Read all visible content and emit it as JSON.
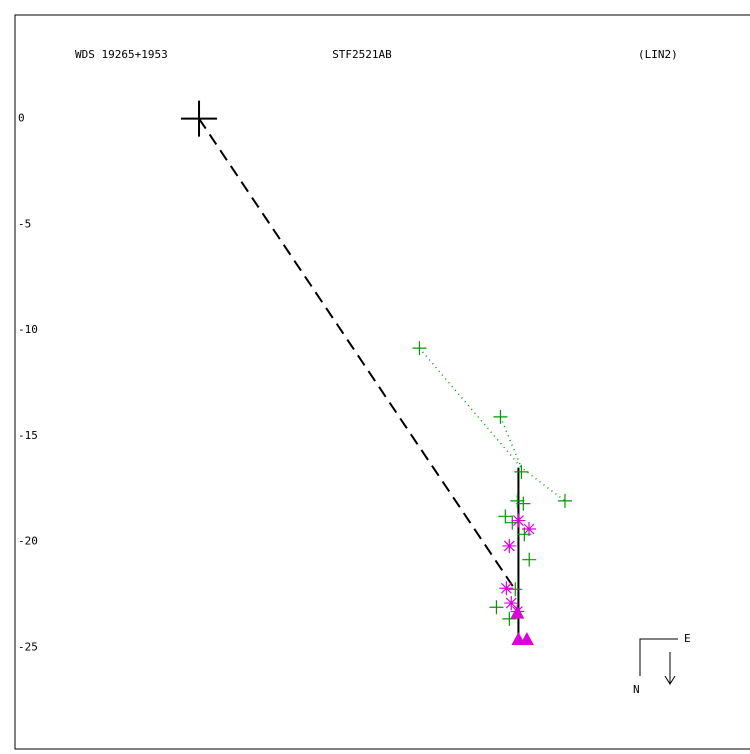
{
  "chart_data": {
    "type": "scatter",
    "title": "STF2521AB",
    "subtitle_left": "WDS 19265+1953",
    "subtitle_right": "(LIN2)",
    "compass": {
      "east": "E",
      "north": "N"
    },
    "xlim": [
      -8.7,
      26
    ],
    "ylim": [
      -29.8,
      4.9
    ],
    "yticks": [
      0,
      -5,
      -10,
      -15,
      -20,
      -25
    ],
    "grid": false,
    "series": [
      {
        "color": "#000000",
        "marker": "big-plus",
        "x": [
          0
        ],
        "values": [
          0
        ]
      },
      {
        "color": "#000000",
        "line": "dashed",
        "x": [
          0,
          15.0
        ],
        "values": [
          0,
          -22.35
        ]
      },
      {
        "color": "#000000",
        "line": "solid",
        "x": [
          15.1,
          15.1
        ],
        "values": [
          -16.5,
          -24.8
        ]
      },
      {
        "color": "#009900",
        "line": "dotted",
        "x": [
          10.42,
          15.24,
          17.3,
          null,
          14.25,
          15.24
        ],
        "values": [
          -10.85,
          -16.5,
          -18.07,
          null,
          -14.1,
          -16.5
        ]
      },
      {
        "color": "#009900",
        "marker": "plus",
        "x": [
          10.42,
          14.25,
          15.24,
          17.3,
          15.05,
          14.48,
          15.33,
          14.81,
          15.38,
          15.61,
          14.06,
          14.95,
          14.67
        ],
        "values": [
          -10.85,
          -14.1,
          -16.7,
          -18.07,
          -18.07,
          -18.8,
          -18.2,
          -19.1,
          -19.65,
          -20.85,
          -23.1,
          -22.25,
          -23.65
        ]
      },
      {
        "color": "#dd00dd",
        "marker": "asterisk",
        "x": [
          14.67,
          15.6,
          14.53,
          14.76,
          15.05,
          15.1
        ],
        "values": [
          -20.2,
          -19.4,
          -22.2,
          -22.9,
          -23.3,
          -19.0
        ]
      },
      {
        "color": "#dd00dd",
        "marker": "triangle",
        "x": [
          15.1,
          15.5,
          15.05
        ],
        "values": [
          -24.6,
          -24.6,
          -23.35
        ]
      }
    ]
  }
}
